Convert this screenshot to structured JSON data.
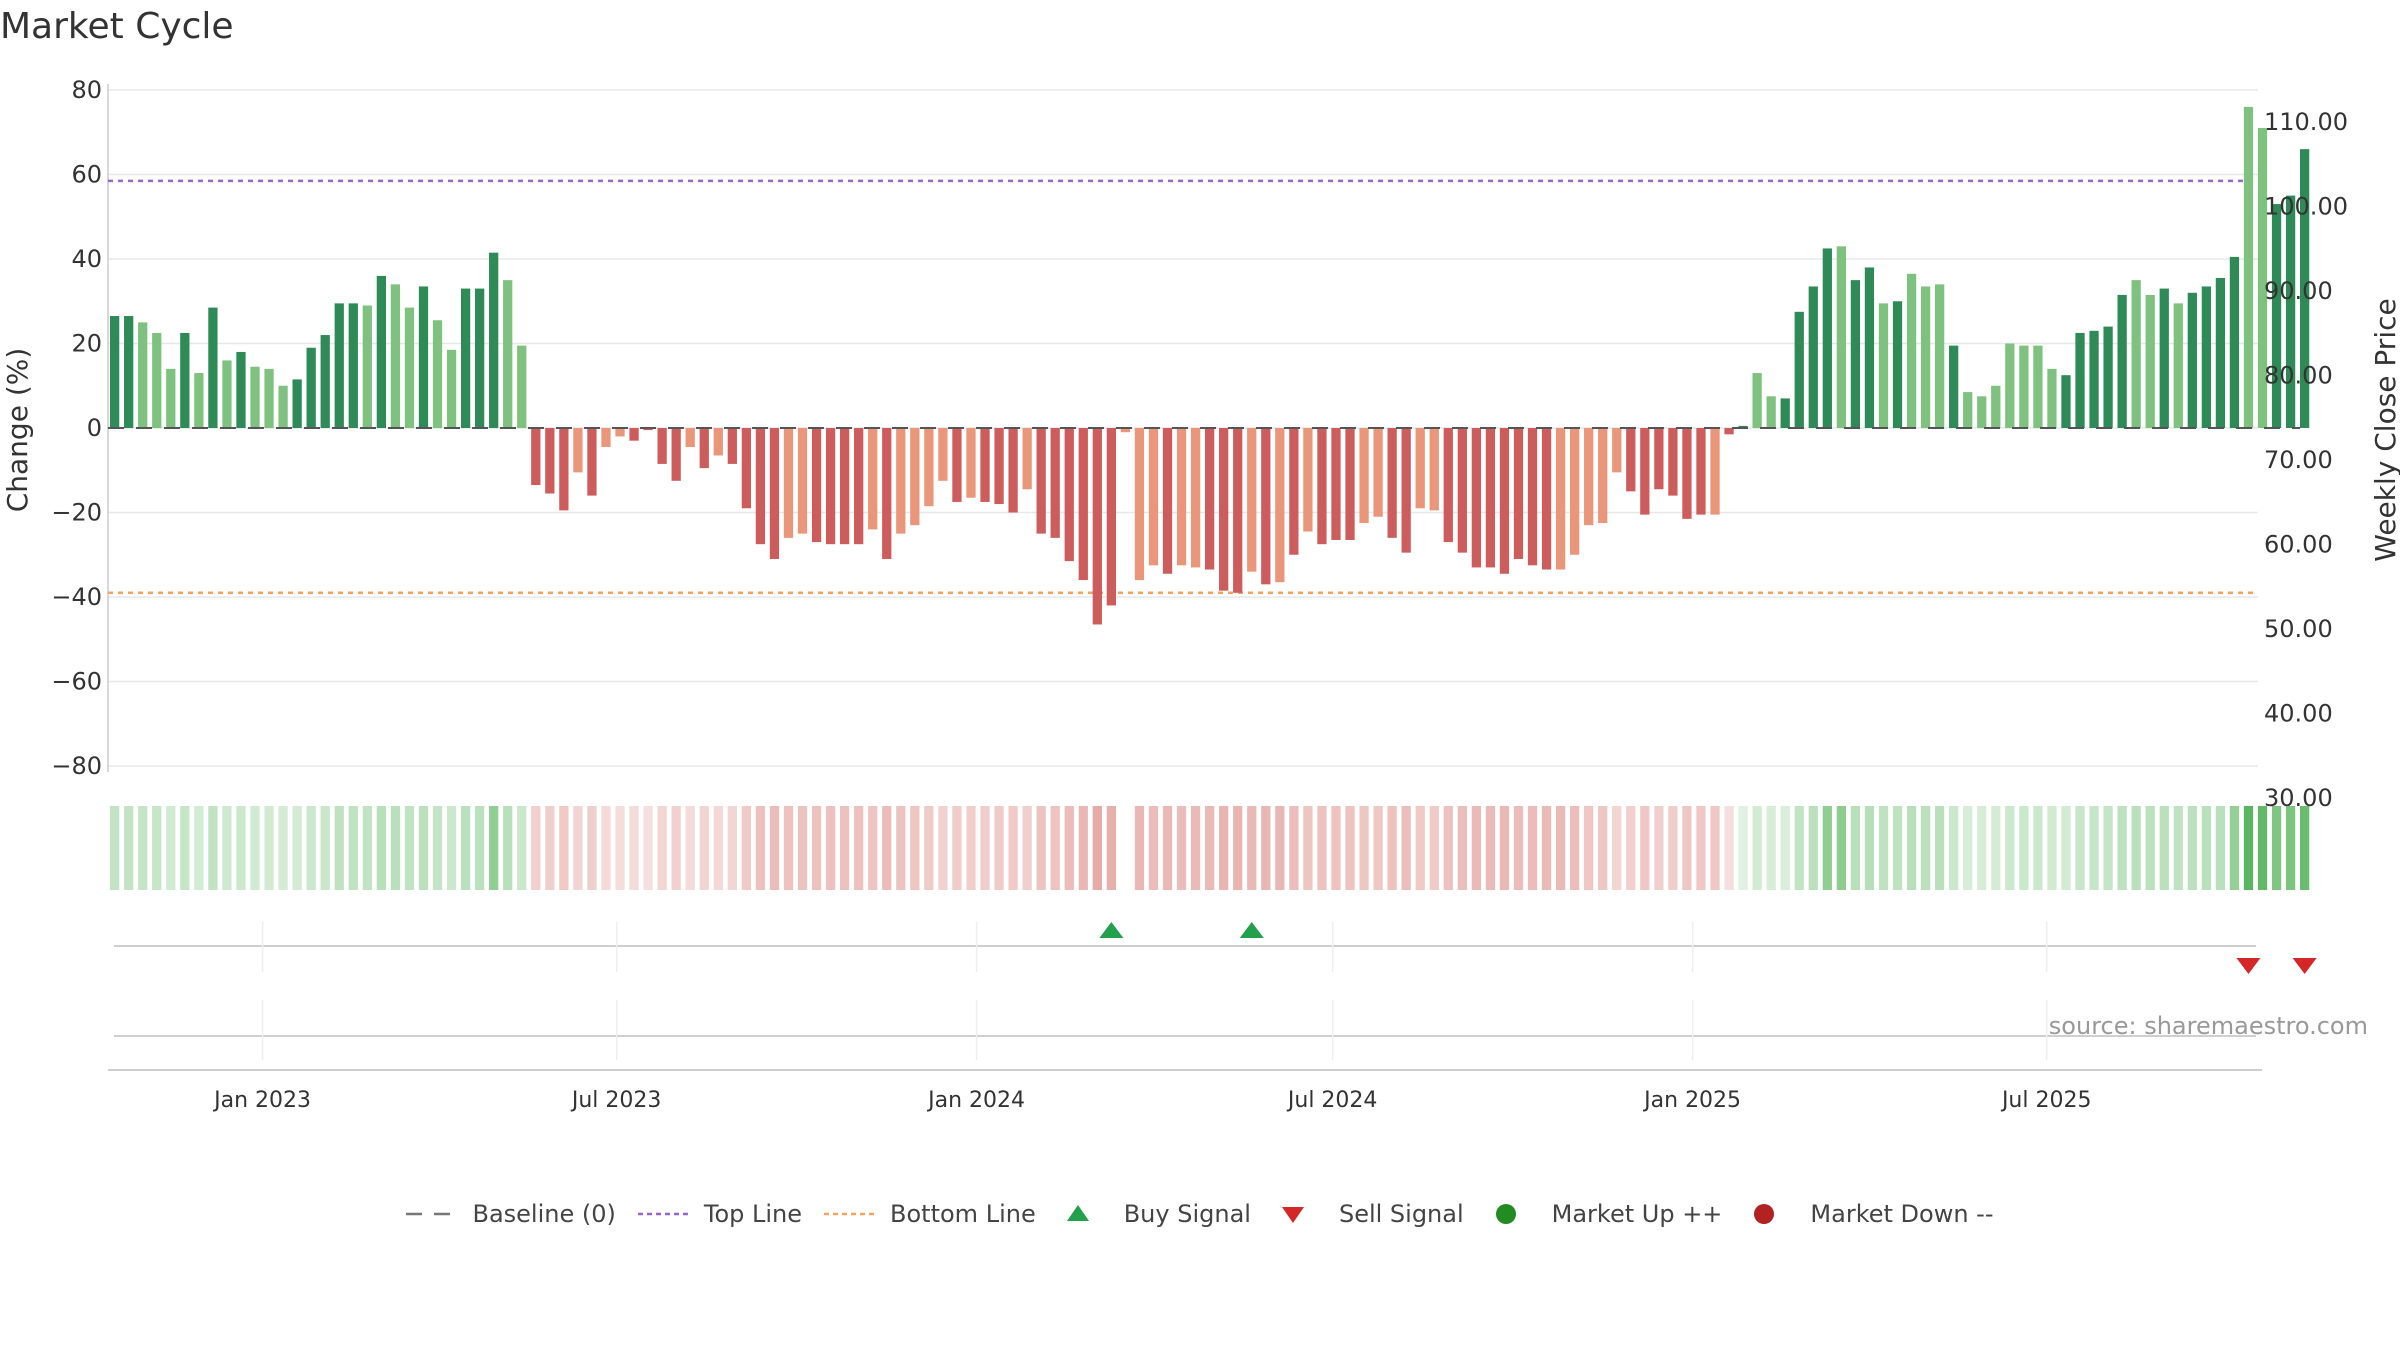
{
  "title": "Market Cycle",
  "source": "source: sharemaestro.com",
  "colors": {
    "up_strong": "#2e8b57",
    "up_light": "#7fc27f",
    "down_strong": "#cd5c5c",
    "down_light": "#e9967a",
    "top_line": "#9966cc",
    "bottom_line": "#f4a460",
    "buy": "#22a04b",
    "sell": "#d62728",
    "market_up": "#228b22",
    "market_down": "#b22222"
  },
  "legend": {
    "baseline": "Baseline (0)",
    "top_line": "Top Line",
    "bottom_line": "Bottom Line",
    "buy_signal": "Buy Signal",
    "sell_signal": "Sell Signal",
    "market_up": "Market Up ++",
    "market_down": "Market Down --"
  },
  "chart_data": {
    "type": "bar",
    "ylabel": "Change (%)",
    "y2label": "Weekly Close Price",
    "ylim": [
      -80,
      80
    ],
    "y2lim": [
      30,
      110
    ],
    "yticks": [
      "80",
      "60",
      "40",
      "20",
      "0",
      "−20",
      "−40",
      "−60",
      "−80"
    ],
    "y2ticks": [
      "110.00",
      "100.00",
      "90.00",
      "80.00",
      "70.00",
      "60.00",
      "50.00",
      "40.00",
      "30.00"
    ],
    "top_line": 58.5,
    "bottom_line": -39,
    "x_start": "2022-10-14",
    "x_end": "2025-10-17",
    "xticks": [
      {
        "label": "Jan 2023",
        "date": "2023-01-01"
      },
      {
        "label": "Jul 2023",
        "date": "2023-07-01"
      },
      {
        "label": "Jan 2024",
        "date": "2024-01-01"
      },
      {
        "label": "Jul 2024",
        "date": "2024-07-01"
      },
      {
        "label": "Jan 2025",
        "date": "2025-01-01"
      },
      {
        "label": "Jul 2025",
        "date": "2025-07-01"
      }
    ],
    "values": [
      26.5,
      26.5,
      25,
      22.5,
      14,
      22.5,
      13,
      28.5,
      16,
      18,
      14.5,
      14,
      10,
      11.5,
      19,
      22,
      29.5,
      29.5,
      29,
      36,
      34,
      28.5,
      33.5,
      25.5,
      18.5,
      33,
      33,
      41.5,
      35,
      19.5,
      -13.5,
      -15.5,
      -19.5,
      -10.5,
      -16,
      -4.5,
      -2,
      -3,
      -0.5,
      -8.5,
      -12.5,
      -4.5,
      -9.5,
      -6.5,
      -8.5,
      -19,
      -27.5,
      -31,
      -26,
      -25,
      -27,
      -27.5,
      -27.5,
      -27.5,
      -24,
      -31,
      -25,
      -23,
      -18.5,
      -12.5,
      -17.5,
      -16.5,
      -17.5,
      -18,
      -20,
      -14.5,
      -25,
      -26,
      -31.5,
      -36,
      -46.5,
      -42,
      -1,
      -36,
      -32.5,
      -34.5,
      -32.5,
      -33,
      -33.5,
      -38.5,
      -39,
      -34,
      -37,
      -36.5,
      -30,
      -24.5,
      -27.5,
      -26.5,
      -26.5,
      -22.5,
      -21,
      -26,
      -29.5,
      -19,
      -19.5,
      -27,
      -29.5,
      -33,
      -33,
      -34.5,
      -31,
      -32.5,
      -33.5,
      -33.5,
      -30,
      -23,
      -22.5,
      -10.5,
      -15,
      -20.5,
      -14.5,
      -16,
      -21.5,
      -20.5,
      -20.5,
      -1.5,
      0.5,
      13,
      7.5,
      7,
      27.5,
      33.5,
      42.5,
      43,
      35,
      38,
      29.5,
      30,
      36.5,
      33.5,
      34,
      19.5,
      8.5,
      7.5,
      10,
      20,
      19.5,
      19.5,
      14,
      12.5,
      22.5,
      23,
      24,
      31.5,
      35,
      31.5,
      33,
      29.5,
      32,
      33.5,
      35.5,
      40.5,
      76,
      71,
      53,
      55,
      66
    ],
    "shade": [
      0,
      0,
      1,
      1,
      1,
      0,
      1,
      0,
      1,
      0,
      1,
      1,
      1,
      0,
      0,
      0,
      0,
      0,
      1,
      0,
      1,
      1,
      0,
      1,
      1,
      0,
      0,
      0,
      1,
      1,
      0,
      0,
      0,
      1,
      0,
      1,
      1,
      0,
      0,
      0,
      0,
      1,
      0,
      1,
      0,
      0,
      0,
      0,
      1,
      1,
      0,
      0,
      0,
      0,
      1,
      0,
      1,
      1,
      1,
      1,
      0,
      1,
      0,
      0,
      0,
      1,
      0,
      0,
      0,
      0,
      0,
      0,
      1,
      1,
      1,
      0,
      1,
      1,
      0,
      0,
      0,
      1,
      0,
      1,
      0,
      1,
      0,
      0,
      0,
      1,
      1,
      0,
      0,
      1,
      1,
      0,
      0,
      0,
      0,
      0,
      0,
      0,
      0,
      1,
      1,
      1,
      1,
      1,
      0,
      0,
      0,
      0,
      0,
      0,
      1,
      0,
      0,
      1,
      1,
      0,
      0,
      0,
      0,
      1,
      0,
      0,
      1,
      0,
      1,
      1,
      1,
      0,
      1,
      1,
      1,
      1,
      1,
      1,
      1,
      0,
      0,
      0,
      0,
      0,
      1,
      1,
      0,
      1,
      0,
      0,
      0,
      0,
      1,
      1,
      0,
      0,
      0
    ],
    "buy_signals": [
      71,
      81
    ],
    "sell_signals": [
      152,
      156
    ]
  }
}
